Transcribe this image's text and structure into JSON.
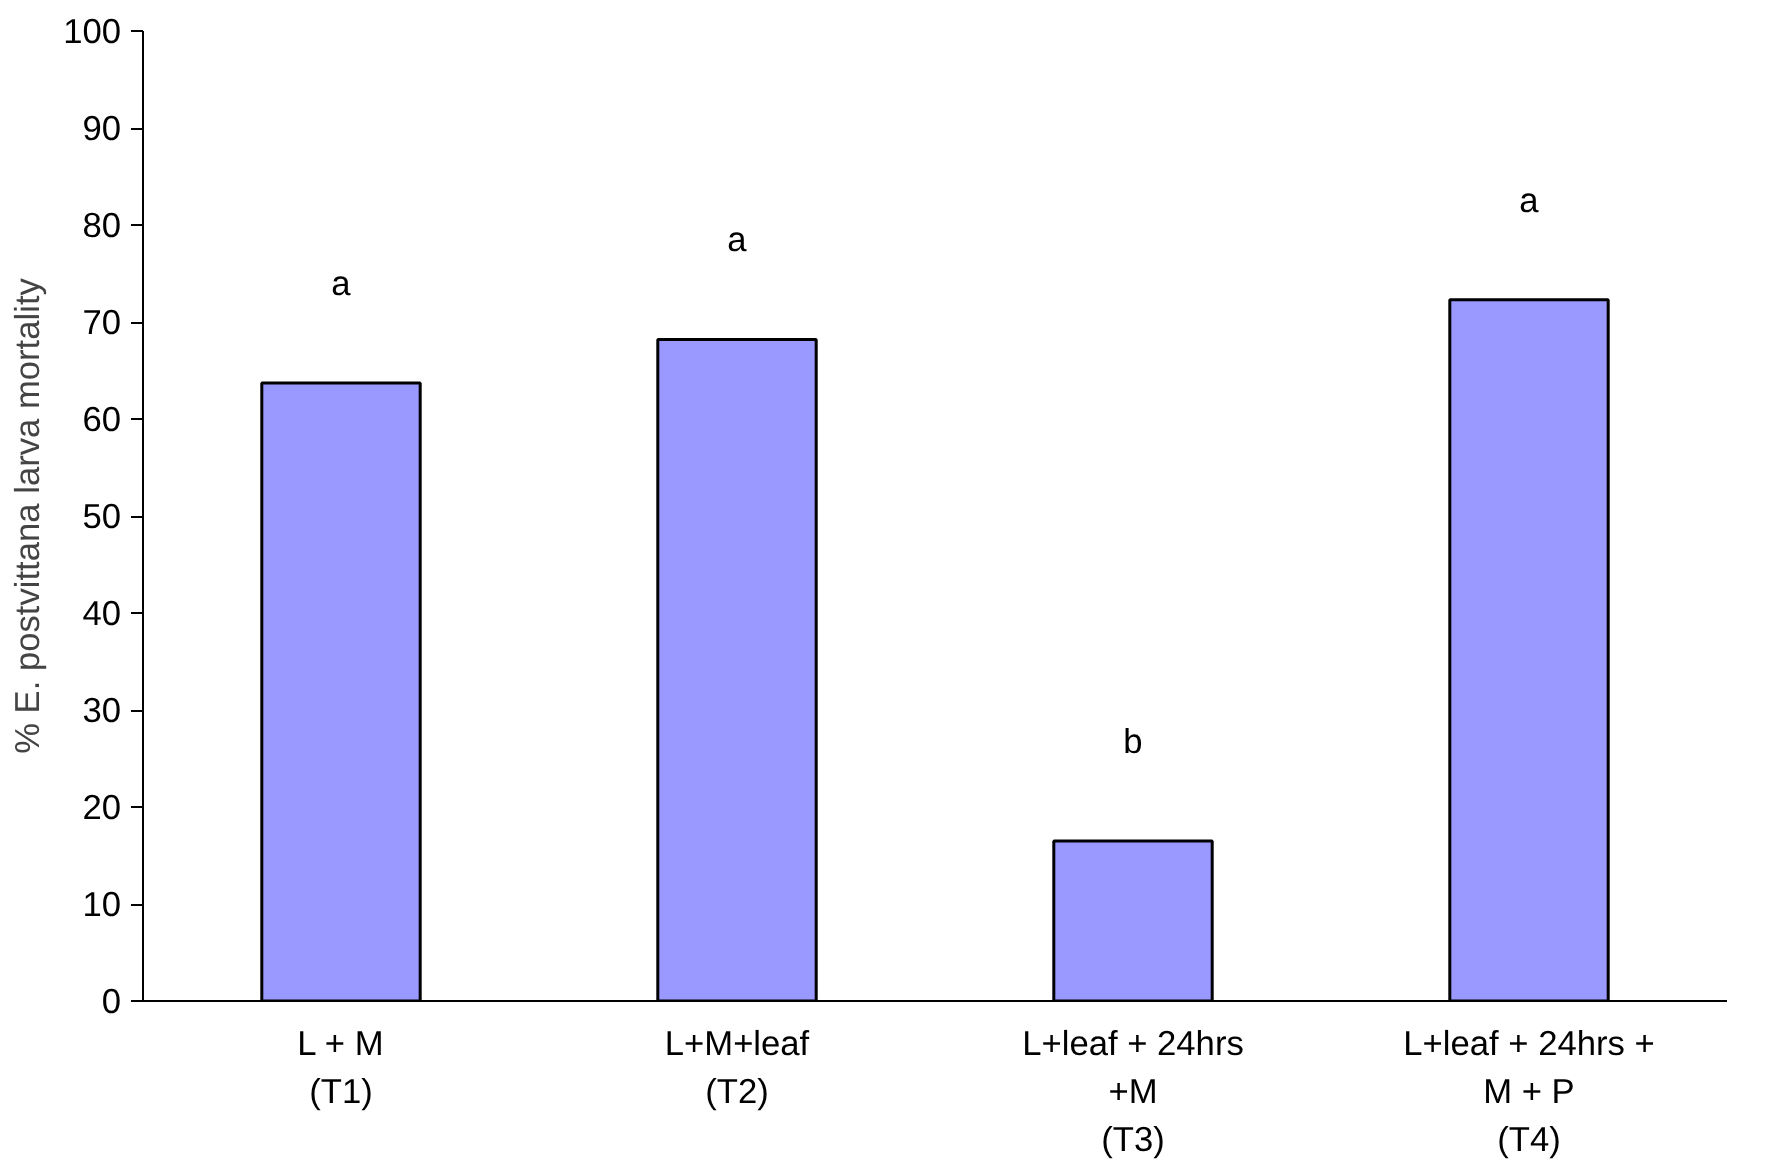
{
  "chart_data": {
    "type": "bar",
    "ylabel": "% E. postvittana larva mortality",
    "categories": [
      "L + M\n(T1)",
      "L+M+leaf\n(T2)",
      "L+leaf + 24hrs\n+M\n(T3)",
      "L+leaf + 24hrs +\nM + P\n(T4)"
    ],
    "values": [
      63.7,
      68.2,
      16.5,
      72.3
    ],
    "color": "#9999ff",
    "ylim": [
      0,
      100
    ],
    "yticks": [
      0,
      10,
      20,
      30,
      40,
      50,
      60,
      70,
      80,
      90,
      100
    ],
    "grid": false,
    "annotations": [
      "a",
      "a",
      "b",
      "a"
    ]
  }
}
